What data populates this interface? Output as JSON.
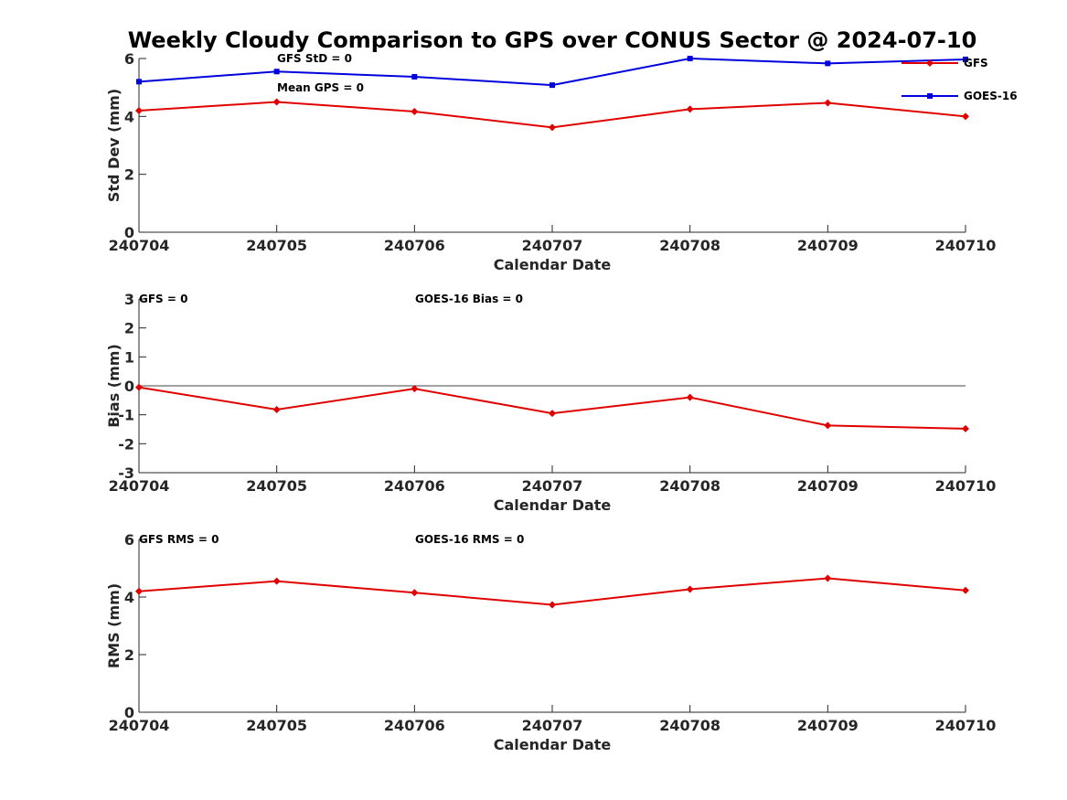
{
  "title": "Weekly Cloudy Comparison to GPS over CONUS Sector @ 2024-07-10",
  "legend": {
    "placement": "top-right",
    "entries": [
      "GFS",
      "GOES-16"
    ]
  },
  "colors": {
    "GFS": "#e00000",
    "GOES-16": "#0000dd",
    "zero_line": "#444444",
    "axes": "#262626"
  },
  "chart_data": [
    {
      "type": "line",
      "title": "",
      "xlabel": "Calendar Date",
      "ylabel": "Std Dev (mm)",
      "x": [
        "240704",
        "240705",
        "240706",
        "240707",
        "240708",
        "240709",
        "240710"
      ],
      "ylim": [
        0,
        6
      ],
      "yticks": [
        "0",
        "2",
        "4",
        "6"
      ],
      "grid": false,
      "annotations": [
        "GFS StD = 0",
        "Mean GPS = 0"
      ],
      "series": [
        {
          "name": "GFS",
          "marker": "diamond",
          "values": [
            4.2,
            4.5,
            4.17,
            3.62,
            4.25,
            4.47,
            4.0
          ]
        },
        {
          "name": "GOES-16",
          "marker": "square",
          "values": [
            5.2,
            5.55,
            5.37,
            5.08,
            6.0,
            5.83,
            5.97
          ]
        }
      ]
    },
    {
      "type": "line",
      "title": "",
      "xlabel": "Calendar Date",
      "ylabel": "Bias (mm)",
      "x": [
        "240704",
        "240705",
        "240706",
        "240707",
        "240708",
        "240709",
        "240710"
      ],
      "ylim": [
        -3,
        3
      ],
      "yticks": [
        "-3",
        "-2",
        "-1",
        "0",
        "1",
        "2",
        "3"
      ],
      "grid": false,
      "zero_line": true,
      "annotations": [
        "GFS = 0",
        "GOES-16 Bias  = 0"
      ],
      "series": [
        {
          "name": "GFS",
          "marker": "diamond",
          "values": [
            -0.05,
            -0.82,
            -0.1,
            -0.95,
            -0.4,
            -1.37,
            -1.48
          ]
        }
      ]
    },
    {
      "type": "line",
      "title": "",
      "xlabel": "Calendar Date",
      "ylabel": "RMS (mm)",
      "x": [
        "240704",
        "240705",
        "240706",
        "240707",
        "240708",
        "240709",
        "240710"
      ],
      "ylim": [
        0,
        6
      ],
      "yticks": [
        "0",
        "2",
        "4",
        "6"
      ],
      "grid": false,
      "annotations": [
        "GFS RMS = 0",
        "GOES-16 RMS = 0"
      ],
      "series": [
        {
          "name": "GFS",
          "marker": "diamond",
          "values": [
            4.2,
            4.55,
            4.15,
            3.73,
            4.27,
            4.65,
            4.23
          ]
        }
      ]
    }
  ]
}
